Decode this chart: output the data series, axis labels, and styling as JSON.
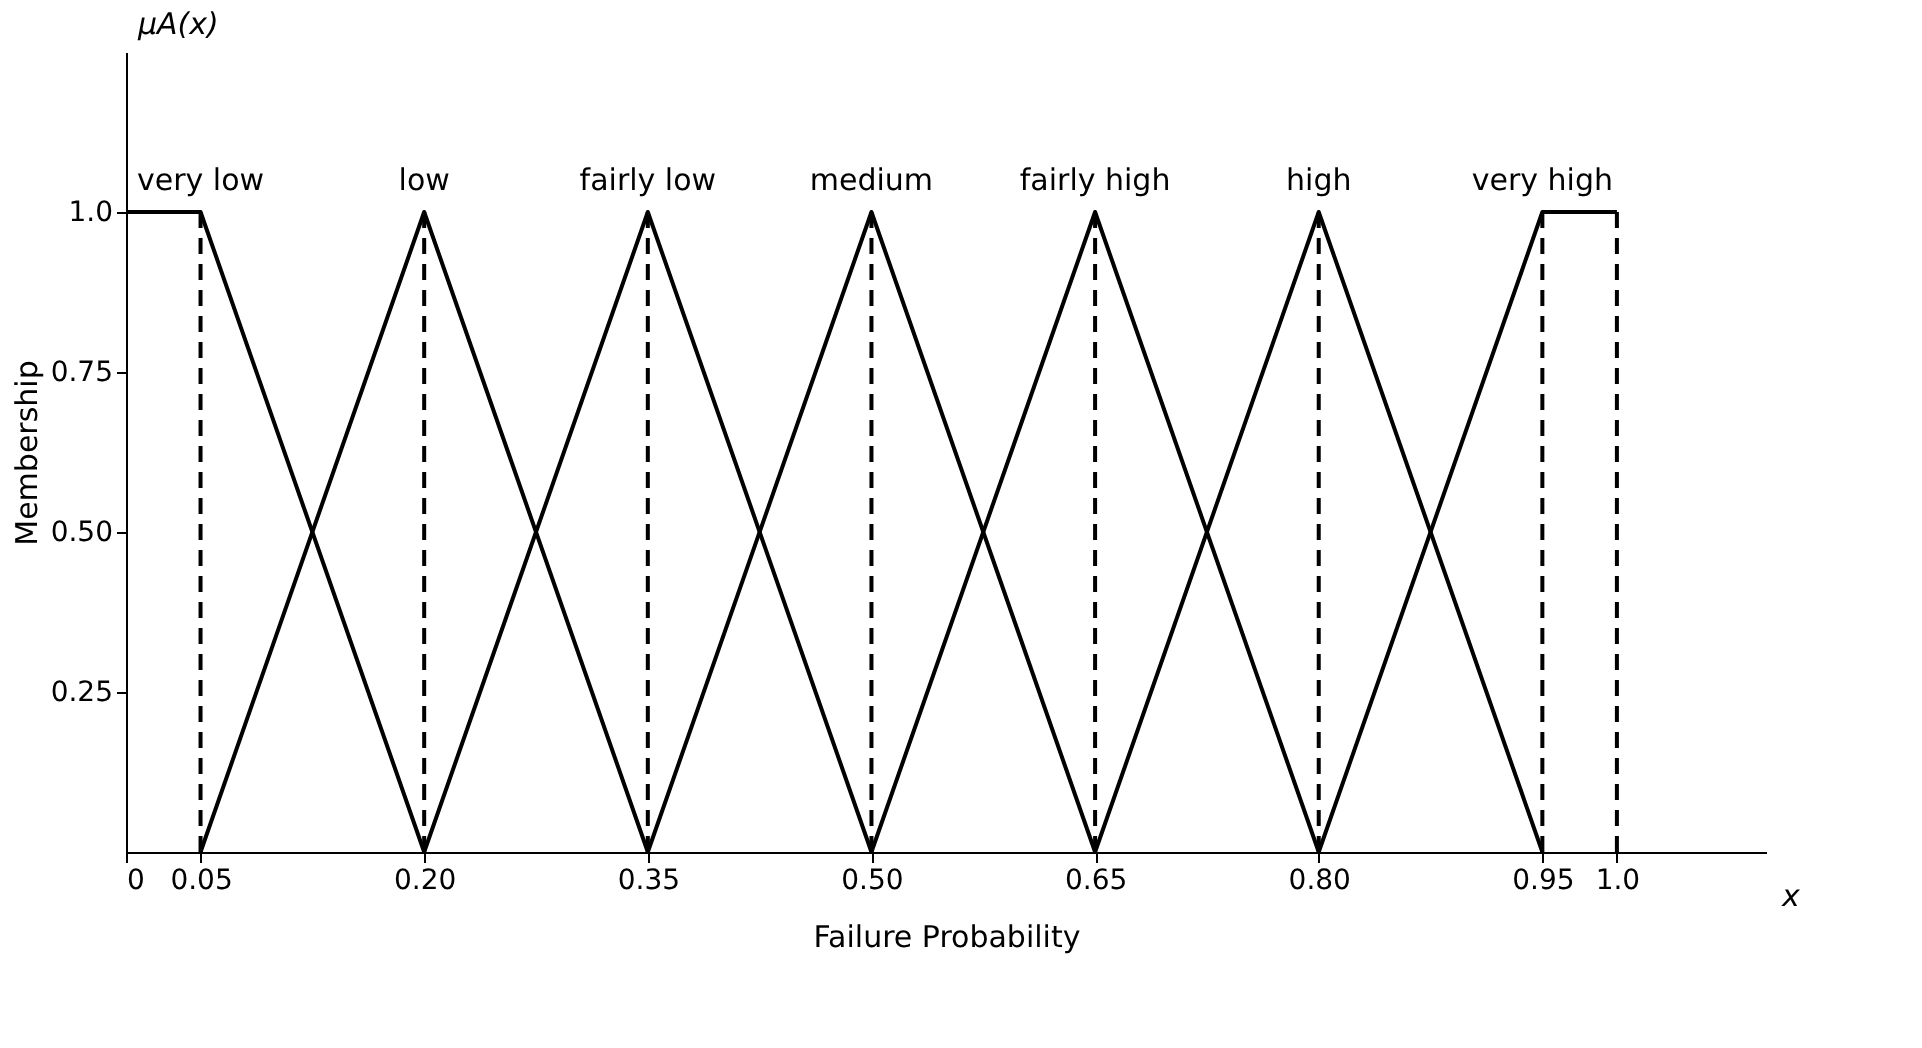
{
  "chart_data": {
    "type": "line",
    "xlabel": "Failure Probability",
    "ylabel": "Membership",
    "annotations": [
      "μA(x)",
      "x"
    ],
    "series": [
      {
        "name": "very low",
        "color": "#000000",
        "x": [
          0,
          0.05,
          0.2
        ],
        "values": [
          1,
          1,
          0
        ]
      },
      {
        "name": "low",
        "color": "#000000",
        "x": [
          0.05,
          0.2,
          0.35
        ],
        "values": [
          0,
          1,
          0
        ]
      },
      {
        "name": "fairly low",
        "color": "#000000",
        "x": [
          0.2,
          0.35,
          0.5
        ],
        "values": [
          0,
          1,
          0
        ]
      },
      {
        "name": "medium",
        "color": "#000000",
        "x": [
          0.35,
          0.5,
          0.65
        ],
        "values": [
          0,
          1,
          0
        ]
      },
      {
        "name": "fairly high",
        "color": "#000000",
        "x": [
          0.5,
          0.65,
          0.8
        ],
        "values": [
          0,
          1,
          0
        ]
      },
      {
        "name": "high",
        "color": "#000000",
        "x": [
          0.65,
          0.8,
          0.95
        ],
        "values": [
          0,
          1,
          0
        ]
      },
      {
        "name": "very high",
        "color": "#000000",
        "x": [
          0.8,
          0.95,
          1.0
        ],
        "values": [
          0,
          1,
          1
        ]
      }
    ],
    "ref_lines": [
      {
        "axis": "x",
        "value": 0.05,
        "line_style": "dashed",
        "color": "#000000"
      },
      {
        "axis": "x",
        "value": 0.2,
        "line_style": "dashed",
        "color": "#000000"
      },
      {
        "axis": "x",
        "value": 0.35,
        "line_style": "dashed",
        "color": "#000000"
      },
      {
        "axis": "x",
        "value": 0.5,
        "line_style": "dashed",
        "color": "#000000"
      },
      {
        "axis": "x",
        "value": 0.65,
        "line_style": "dashed",
        "color": "#000000"
      },
      {
        "axis": "x",
        "value": 0.8,
        "line_style": "dashed",
        "color": "#000000"
      },
      {
        "axis": "x",
        "value": 0.95,
        "line_style": "dashed",
        "color": "#000000"
      },
      {
        "axis": "x",
        "value": 1.0,
        "line_style": "dashed",
        "color": "#000000"
      }
    ],
    "xlim": [
      0,
      1.1
    ],
    "ylim": [
      0,
      1.25
    ],
    "xticks": [
      0,
      0.05,
      {
        "value": 0.2,
        "label": "0.20"
      },
      0.35,
      {
        "value": 0.5,
        "label": "0.50"
      },
      0.65,
      {
        "value": 0.8,
        "label": "0.80"
      },
      0.95,
      {
        "value": 1.0,
        "label": "1.0"
      }
    ],
    "yticks": [
      0.25,
      {
        "value": 0.5,
        "label": "0.50"
      },
      0.75,
      {
        "value": 1.0,
        "label": "1.0"
      }
    ],
    "grid": false,
    "line_style": "solid",
    "marker": "none"
  }
}
